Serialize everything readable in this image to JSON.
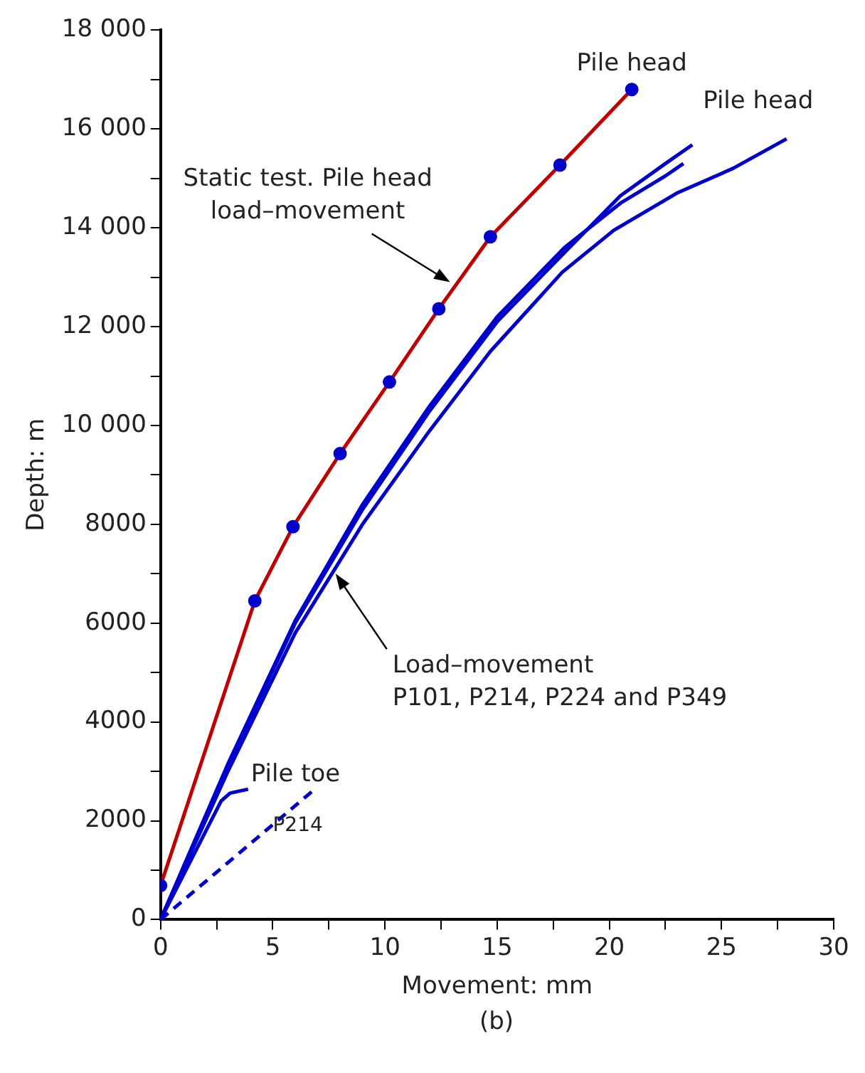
{
  "chart_data": {
    "type": "line",
    "xlabel": "Movement: mm",
    "ylabel": "Depth: m",
    "xlim": [
      0,
      30
    ],
    "xticks": [
      0,
      {
        "value": 2.5,
        "label": null
      },
      5,
      {
        "value": 7.5,
        "label": null
      },
      10,
      {
        "value": 12.5,
        "label": null
      },
      15,
      {
        "value": 17.5,
        "label": null
      },
      20,
      {
        "value": 22.5,
        "label": null
      },
      25,
      {
        "value": 27.5,
        "label": null
      },
      30
    ],
    "ylim": [
      0,
      18000
    ],
    "yticks": [
      0,
      {
        "value": 1000,
        "label": null
      },
      2000,
      {
        "value": 3000,
        "label": null
      },
      4000,
      {
        "value": 5000,
        "label": null
      },
      6000,
      {
        "value": 7000,
        "label": null
      },
      8000,
      {
        "value": 9000,
        "label": null
      },
      {
        "value": 10000,
        "label": "10 000"
      },
      {
        "value": 11000,
        "label": null
      },
      {
        "value": 12000,
        "label": "12 000"
      },
      {
        "value": 13000,
        "label": null
      },
      {
        "value": 14000,
        "label": "14 000"
      },
      {
        "value": 15000,
        "label": null
      },
      {
        "value": 16000,
        "label": "16 000"
      },
      {
        "value": 17000,
        "label": null
      },
      {
        "value": 18000,
        "label": "18 000"
      }
    ],
    "grid": false,
    "legend": false,
    "line_style": "solid",
    "series": [
      {
        "color": "#c00000",
        "marker": "circle",
        "x": [
          0,
          4.2,
          5.9,
          8,
          10.2,
          12.4,
          14.7,
          17.8,
          21
        ],
        "values": [
          690,
          6450,
          7950,
          9430,
          10880,
          12360,
          13820,
          15270,
          16800
        ]
      },
      {
        "color": "#0000cc",
        "marker": "none",
        "x": [
          0,
          3,
          6,
          9,
          12,
          14.7,
          17.9,
          20.2,
          23,
          25.5,
          27.9
        ],
        "values": [
          0,
          3000,
          5800,
          8000,
          9900,
          11500,
          13100,
          13950,
          14700,
          15200,
          15800
        ]
      },
      {
        "color": "#0000cc",
        "marker": "none",
        "x": [
          0,
          3,
          6,
          9,
          12,
          15,
          18,
          20.5,
          22.5,
          23.7
        ],
        "values": [
          0,
          3100,
          6000,
          8300,
          10300,
          12100,
          13500,
          14650,
          15300,
          15680
        ]
      },
      {
        "color": "#0000cc",
        "marker": "none",
        "x": [
          0,
          3,
          6,
          9,
          12,
          15,
          18,
          20.5,
          22.5,
          23.3
        ],
        "values": [
          0,
          3150,
          6050,
          8400,
          10400,
          12200,
          13600,
          14500,
          15050,
          15300
        ]
      },
      {
        "color": "#0000cc",
        "marker": "none",
        "x": [
          0,
          2.7,
          3.1,
          3.9
        ],
        "values": [
          0,
          2400,
          2560,
          2640
        ]
      },
      {
        "color": "#0000cc",
        "marker": "none",
        "line_style": "dashed",
        "x": [
          0,
          6.9
        ],
        "values": [
          0,
          2650
        ]
      }
    ],
    "annotations": [
      {
        "text": "Pile head",
        "x": 21,
        "y": 16800
      },
      {
        "text": "Pile head",
        "x": 27.9,
        "y": 15800
      },
      {
        "text": "Static test. Pile head\nload–movement",
        "x": 12.9,
        "y": 12900
      },
      {
        "text": "Load–movement\nP101, P214, P224 and P349",
        "x": 7.8,
        "y": 7000
      },
      {
        "text": "Pile toe",
        "x": 3.9,
        "y": 2640
      },
      {
        "text": "P214",
        "x": 5,
        "y": 1900
      },
      "(b)"
    ]
  }
}
